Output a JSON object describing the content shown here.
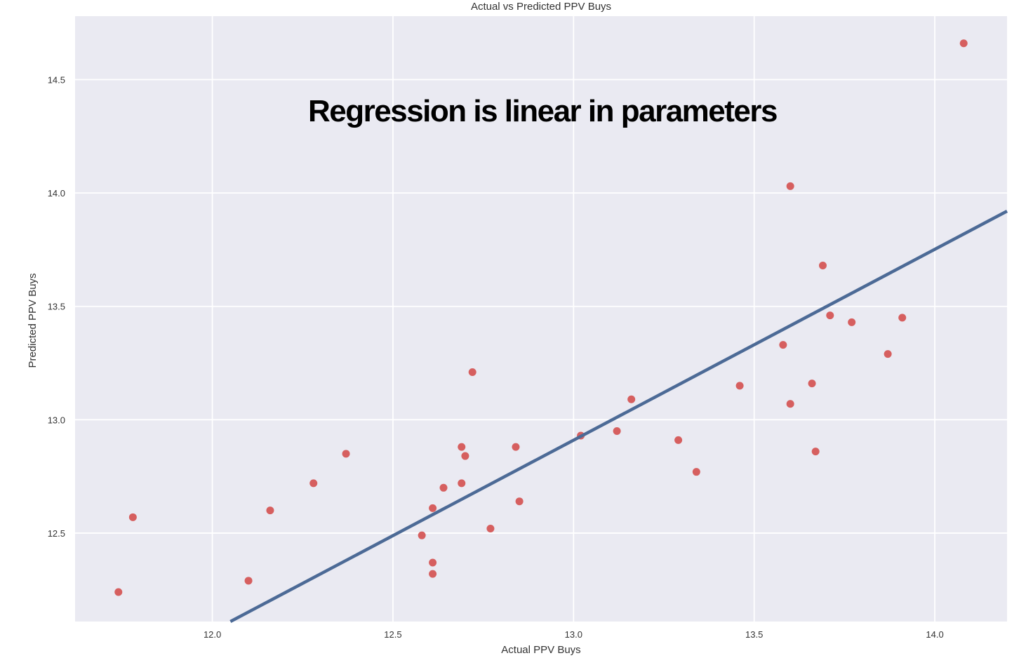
{
  "chart_data": {
    "type": "scatter",
    "title": "Actual vs Predicted PPV Buys",
    "xlabel": "Actual PPV Buys",
    "ylabel": "Predicted PPV Buys",
    "annotation": "Regression is linear in parameters",
    "xlim": [
      11.62,
      14.2
    ],
    "ylim": [
      12.11,
      14.78
    ],
    "xticks": [
      12.0,
      12.5,
      13.0,
      13.5,
      14.0
    ],
    "xtick_labels": [
      "12.0",
      "12.5",
      "13.0",
      "13.5",
      "14.0"
    ],
    "yticks": [
      12.5,
      13.0,
      13.5,
      14.0,
      14.5
    ],
    "ytick_labels": [
      "12.5",
      "13.0",
      "13.5",
      "14.0",
      "14.5"
    ],
    "grid": true,
    "colors": {
      "background": "#eaeaf2",
      "grid": "#ffffff",
      "points": "#d65f5f",
      "line": "#4c6a96"
    },
    "points": {
      "x": [
        11.74,
        11.78,
        12.1,
        12.16,
        12.28,
        12.37,
        12.58,
        12.61,
        12.61,
        12.61,
        12.64,
        12.69,
        12.69,
        12.7,
        12.72,
        12.77,
        12.84,
        12.85,
        13.02,
        13.12,
        13.16,
        13.29,
        13.34,
        13.46,
        13.58,
        13.6,
        13.6,
        13.66,
        13.67,
        13.69,
        13.71,
        13.77,
        13.87,
        13.91,
        14.08
      ],
      "y": [
        12.24,
        12.57,
        12.29,
        12.6,
        12.72,
        12.85,
        12.49,
        12.61,
        12.37,
        12.32,
        12.7,
        12.72,
        12.88,
        12.84,
        13.21,
        12.52,
        12.88,
        12.64,
        12.93,
        12.95,
        13.09,
        12.91,
        12.77,
        13.15,
        13.33,
        14.03,
        13.07,
        13.16,
        12.86,
        13.68,
        13.46,
        13.43,
        13.29,
        13.45,
        14.66
      ]
    },
    "fit_line": {
      "x": [
        12.05,
        14.2
      ],
      "y": [
        12.11,
        13.92
      ]
    }
  }
}
